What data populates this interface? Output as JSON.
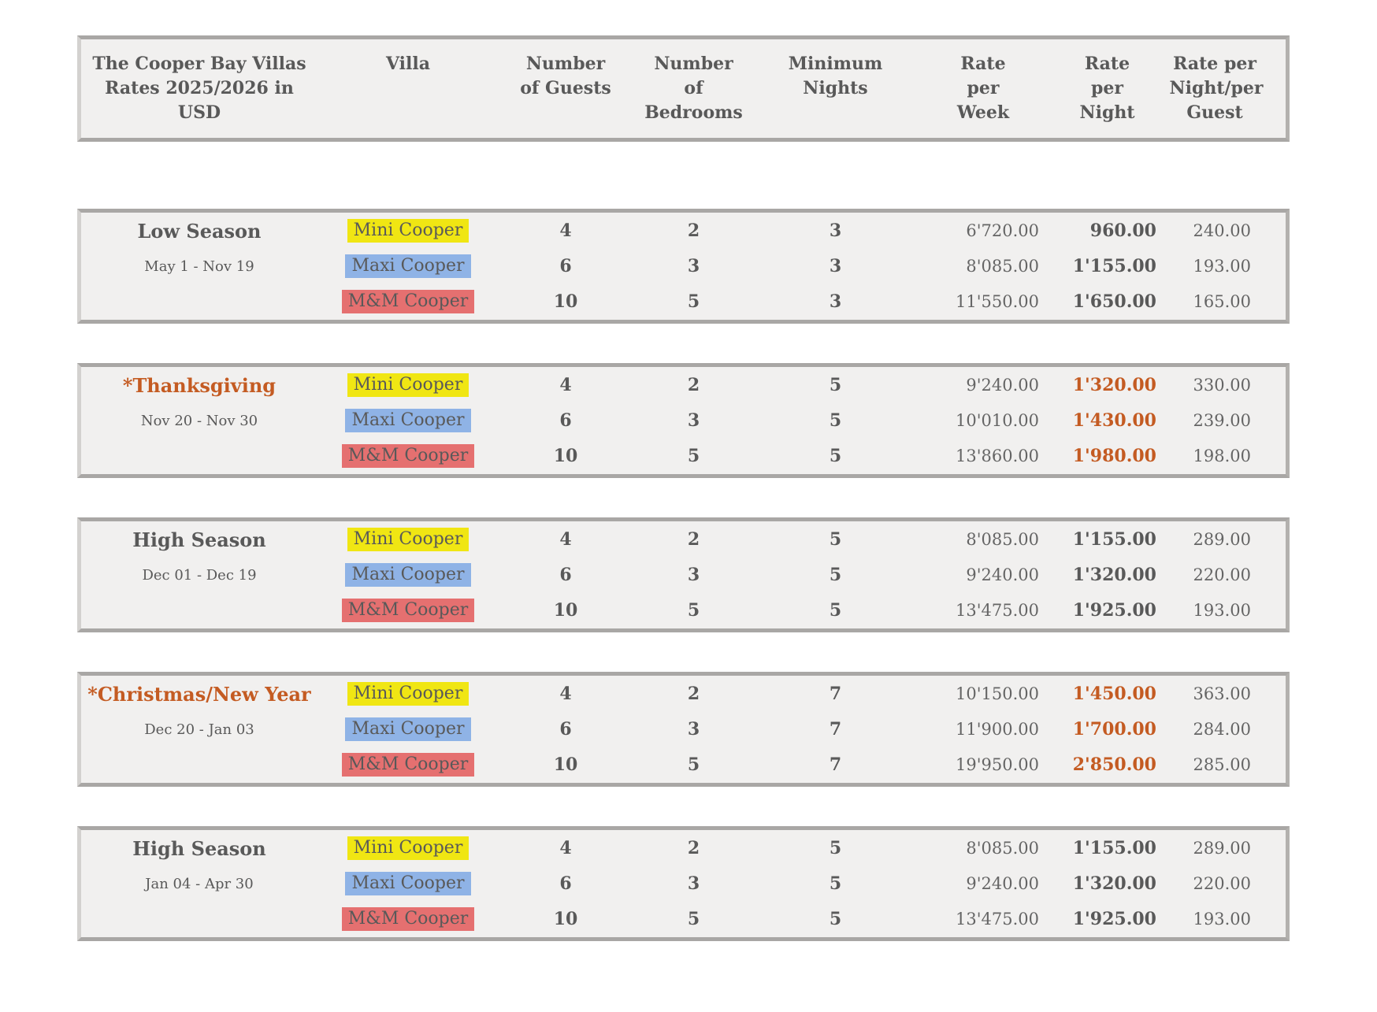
{
  "colors": {
    "text": "#595959",
    "special": "#c45b22",
    "box_background": "#f1f0ef",
    "box_border": "#a9a7a5",
    "highlight_yellow": "#f0e613",
    "highlight_blue": "#8fb3e6",
    "highlight_red": "#e57070"
  },
  "header": {
    "title": "The Cooper Bay Villas Rates 2025/2026 in USD",
    "columns": [
      "Villa",
      "Number of Guests",
      "Number of Bedrooms",
      "Minimum Nights",
      "Rate per Week",
      "Rate per Night",
      "Rate per Night/per Guest"
    ]
  },
  "seasons": [
    {
      "name": "Low Season",
      "dates": "May 1 - Nov 19",
      "special": false,
      "rows": [
        {
          "villa": "Mini Cooper",
          "highlight": "highlight_yellow",
          "guests": "4",
          "bedrooms": "2",
          "min_nights": "3",
          "rate_per_week": "6'720.00",
          "rate_per_night": "960.00",
          "rate_per_night_per_guest": "240.00"
        },
        {
          "villa": "Maxi Cooper",
          "highlight": "highlight_blue",
          "guests": "6",
          "bedrooms": "3",
          "min_nights": "3",
          "rate_per_week": "8'085.00",
          "rate_per_night": "1'155.00",
          "rate_per_night_per_guest": "193.00"
        },
        {
          "villa": "M&M Cooper",
          "highlight": "highlight_red",
          "guests": "10",
          "bedrooms": "5",
          "min_nights": "3",
          "rate_per_week": "11'550.00",
          "rate_per_night": "1'650.00",
          "rate_per_night_per_guest": "165.00"
        }
      ]
    },
    {
      "name": "*Thanksgiving",
      "dates": "Nov 20 - Nov 30",
      "special": true,
      "rows": [
        {
          "villa": "Mini Cooper",
          "highlight": "highlight_yellow",
          "guests": "4",
          "bedrooms": "2",
          "min_nights": "5",
          "rate_per_week": "9'240.00",
          "rate_per_night": "1'320.00",
          "rate_per_night_per_guest": "330.00"
        },
        {
          "villa": "Maxi Cooper",
          "highlight": "highlight_blue",
          "guests": "6",
          "bedrooms": "3",
          "min_nights": "5",
          "rate_per_week": "10'010.00",
          "rate_per_night": "1'430.00",
          "rate_per_night_per_guest": "239.00"
        },
        {
          "villa": "M&M Cooper",
          "highlight": "highlight_red",
          "guests": "10",
          "bedrooms": "5",
          "min_nights": "5",
          "rate_per_week": "13'860.00",
          "rate_per_night": "1'980.00",
          "rate_per_night_per_guest": "198.00"
        }
      ]
    },
    {
      "name": "High Season",
      "dates": "Dec 01 - Dec 19",
      "special": false,
      "rows": [
        {
          "villa": "Mini Cooper",
          "highlight": "highlight_yellow",
          "guests": "4",
          "bedrooms": "2",
          "min_nights": "5",
          "rate_per_week": "8'085.00",
          "rate_per_night": "1'155.00",
          "rate_per_night_per_guest": "289.00"
        },
        {
          "villa": "Maxi Cooper",
          "highlight": "highlight_blue",
          "guests": "6",
          "bedrooms": "3",
          "min_nights": "5",
          "rate_per_week": "9'240.00",
          "rate_per_night": "1'320.00",
          "rate_per_night_per_guest": "220.00"
        },
        {
          "villa": "M&M Cooper",
          "highlight": "highlight_red",
          "guests": "10",
          "bedrooms": "5",
          "min_nights": "5",
          "rate_per_week": "13'475.00",
          "rate_per_night": "1'925.00",
          "rate_per_night_per_guest": "193.00"
        }
      ]
    },
    {
      "name": "*Christmas/New Year",
      "dates": "Dec 20 - Jan 03",
      "special": true,
      "rows": [
        {
          "villa": "Mini Cooper",
          "highlight": "highlight_yellow",
          "guests": "4",
          "bedrooms": "2",
          "min_nights": "7",
          "rate_per_week": "10'150.00",
          "rate_per_night": "1'450.00",
          "rate_per_night_per_guest": "363.00"
        },
        {
          "villa": "Maxi Cooper",
          "highlight": "highlight_blue",
          "guests": "6",
          "bedrooms": "3",
          "min_nights": "7",
          "rate_per_week": "11'900.00",
          "rate_per_night": "1'700.00",
          "rate_per_night_per_guest": "284.00"
        },
        {
          "villa": "M&M Cooper",
          "highlight": "highlight_red",
          "guests": "10",
          "bedrooms": "5",
          "min_nights": "7",
          "rate_per_week": "19'950.00",
          "rate_per_night": "2'850.00",
          "rate_per_night_per_guest": "285.00"
        }
      ]
    },
    {
      "name": "High Season",
      "dates": "Jan 04 - Apr 30",
      "special": false,
      "rows": [
        {
          "villa": "Mini Cooper",
          "highlight": "highlight_yellow",
          "guests": "4",
          "bedrooms": "2",
          "min_nights": "5",
          "rate_per_week": "8'085.00",
          "rate_per_night": "1'155.00",
          "rate_per_night_per_guest": "289.00"
        },
        {
          "villa": "Maxi Cooper",
          "highlight": "highlight_blue",
          "guests": "6",
          "bedrooms": "3",
          "min_nights": "5",
          "rate_per_week": "9'240.00",
          "rate_per_night": "1'320.00",
          "rate_per_night_per_guest": "220.00"
        },
        {
          "villa": "M&M Cooper",
          "highlight": "highlight_red",
          "guests": "10",
          "bedrooms": "5",
          "min_nights": "5",
          "rate_per_week": "13'475.00",
          "rate_per_night": "1'925.00",
          "rate_per_night_per_guest": "193.00"
        }
      ]
    }
  ]
}
